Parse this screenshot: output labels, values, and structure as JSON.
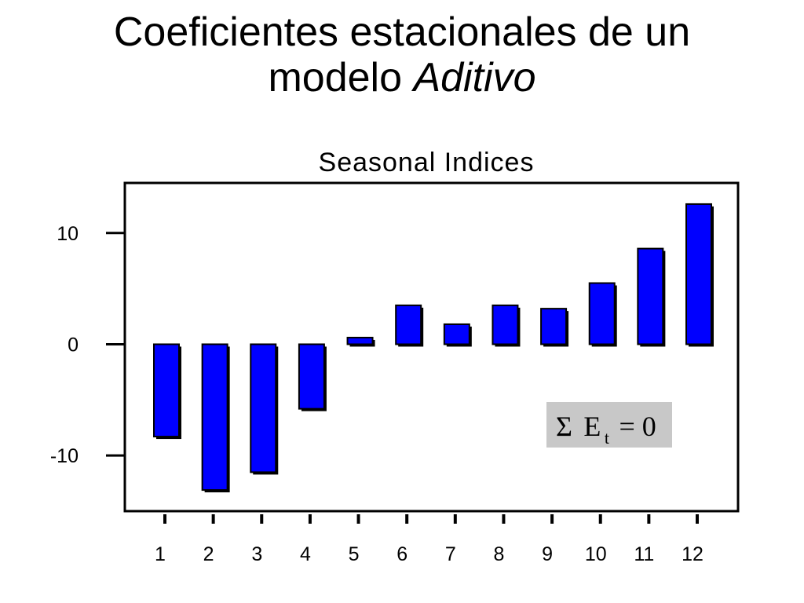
{
  "slide": {
    "title_line1": "Coeficientes estacionales de un",
    "title_line2_prefix": "modelo ",
    "title_line2_emph": "Aditivo"
  },
  "chart_data": {
    "type": "bar",
    "title": "Seasonal Indices",
    "xlabel": "",
    "ylabel": "",
    "categories": [
      "1",
      "2",
      "3",
      "4",
      "5",
      "6",
      "7",
      "8",
      "9",
      "10",
      "11",
      "12"
    ],
    "values": [
      -8.3,
      -13.1,
      -11.5,
      -5.8,
      0.6,
      3.5,
      1.8,
      3.5,
      3.2,
      5.5,
      8.6,
      12.6
    ],
    "ylim": [
      -15,
      14.5
    ],
    "yticks": [
      10,
      0,
      -10
    ],
    "ytick_labels": [
      "10",
      "0",
      "-10"
    ],
    "grid": false,
    "legend": "none",
    "bar_color": "#0000ff",
    "annotation": {
      "sigma": "Σ",
      "symbol": "E",
      "subscript": "t",
      "rhs": "= 0",
      "background": "#c8c8c8"
    }
  }
}
